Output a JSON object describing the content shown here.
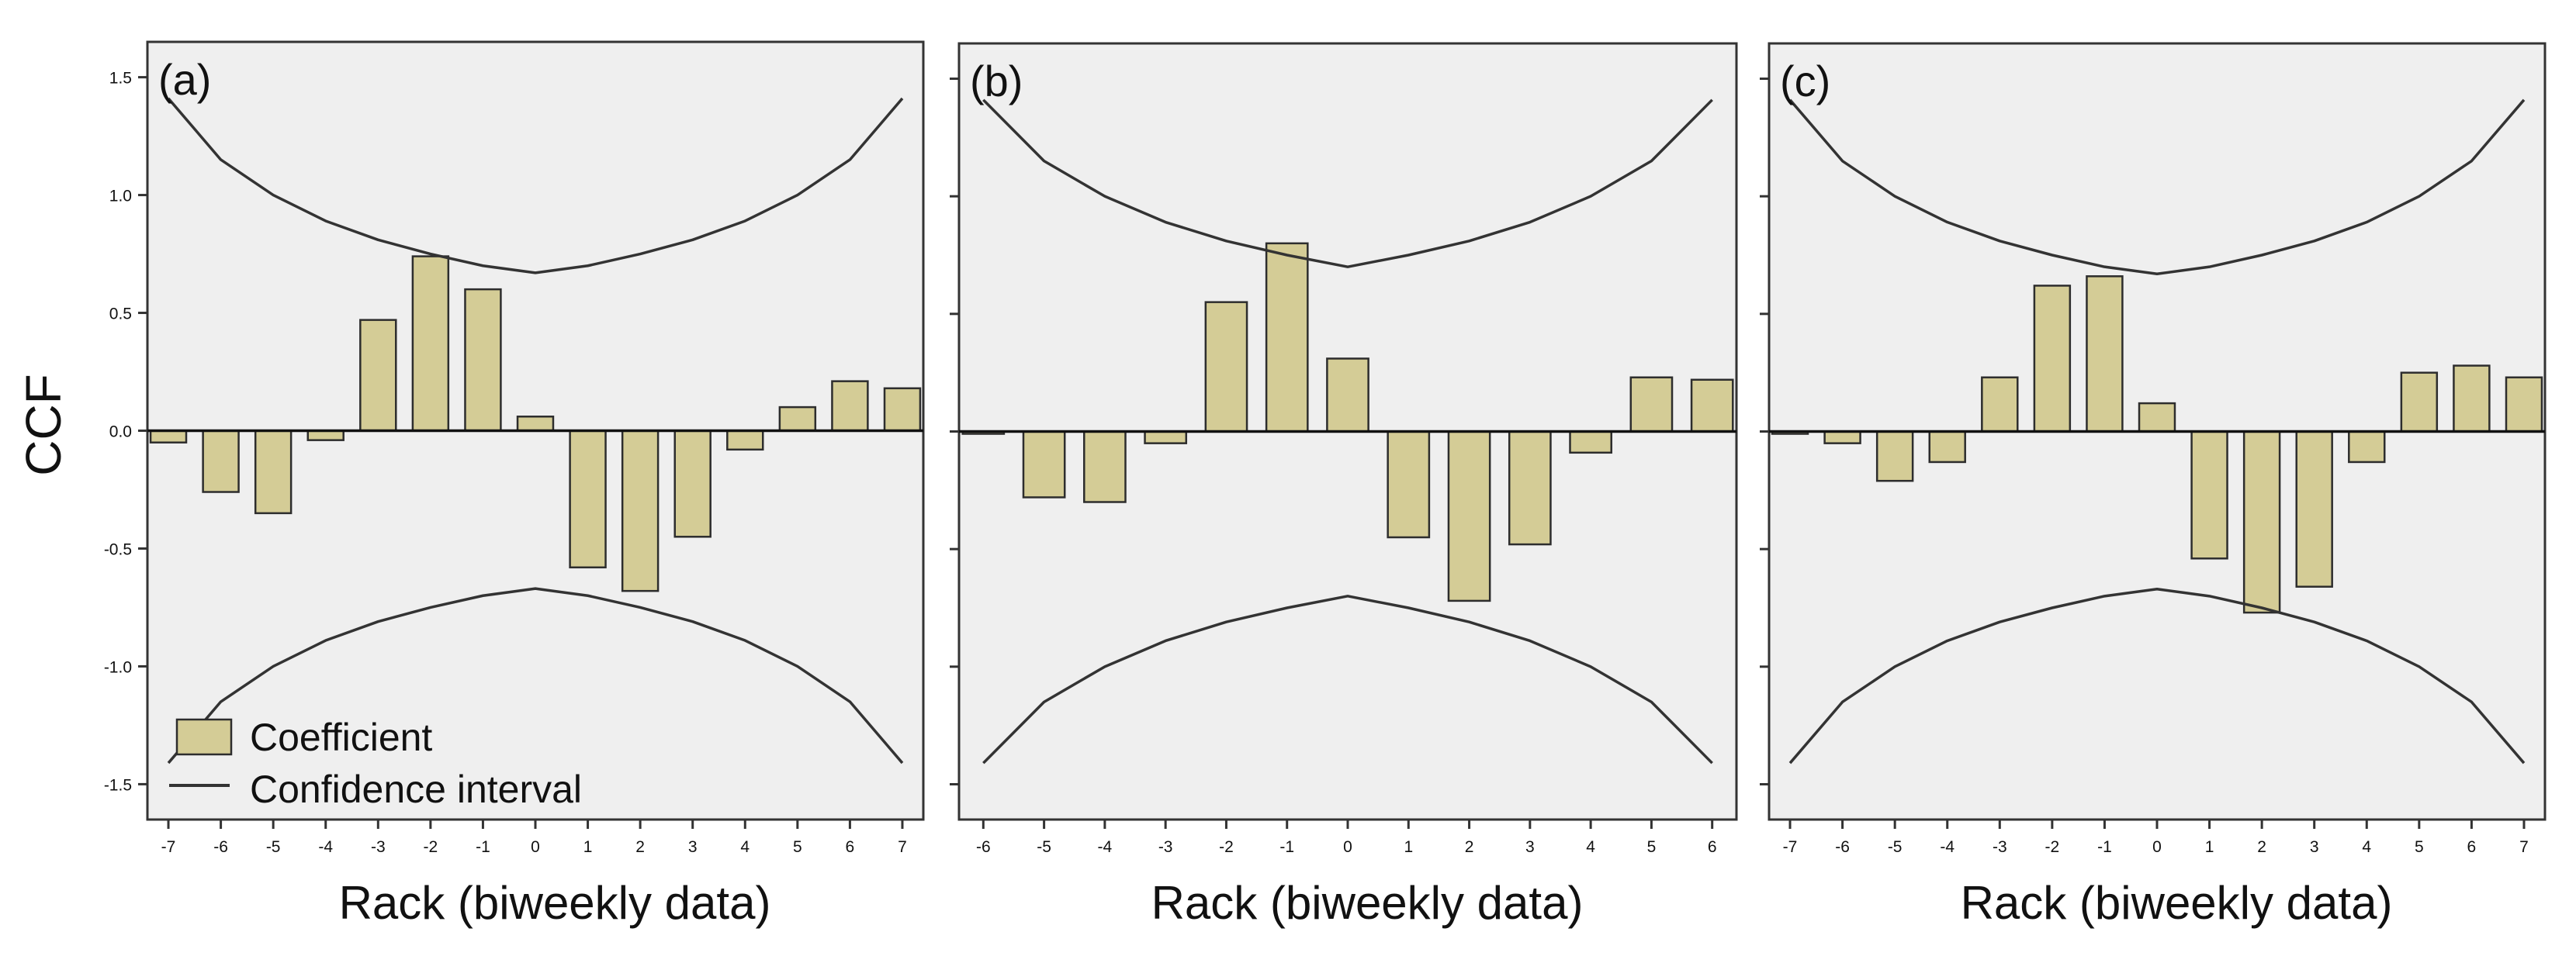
{
  "figure": {
    "ylabel": "CCF",
    "legend": {
      "bar_label": "Coefficient",
      "line_label": "Confidence interval",
      "placement": "bottom-left of panel (a)"
    }
  },
  "chart_data": [
    {
      "type": "bar",
      "panel_label": "(a)",
      "title": "",
      "xlabel": "Rack (biweekly data)",
      "ylabel": "CCF",
      "ylim": [
        -1.65,
        1.65
      ],
      "yticks": [
        -1.5,
        -1.0,
        -0.5,
        0.0,
        0.5,
        1.0,
        1.5
      ],
      "ytick_labels": [
        "-1.5",
        "-1.0",
        "-0.5",
        "0.0",
        "0.5",
        "1.0",
        "1.5"
      ],
      "categories": [
        "-7",
        "-6",
        "-5",
        "-4",
        "-3",
        "-2",
        "-1",
        "0",
        "1",
        "2",
        "3",
        "4",
        "5",
        "6",
        "7"
      ],
      "lags": [
        -7,
        -6,
        -5,
        -4,
        -3,
        -2,
        -1,
        0,
        1,
        2,
        3,
        4,
        5,
        6,
        7
      ],
      "values": [
        -0.05,
        -0.26,
        -0.35,
        -0.04,
        0.47,
        0.74,
        0.6,
        0.06,
        -0.58,
        -0.68,
        -0.45,
        -0.08,
        0.1,
        0.21,
        0.18
      ],
      "confidence_upper": [
        1.41,
        1.15,
        1.0,
        0.89,
        0.81,
        0.75,
        0.7,
        0.67,
        0.7,
        0.75,
        0.81,
        0.89,
        1.0,
        1.15,
        1.41
      ],
      "confidence_lower": [
        -1.41,
        -1.15,
        -1.0,
        -0.89,
        -0.81,
        -0.75,
        -0.7,
        -0.67,
        -0.7,
        -0.75,
        -0.81,
        -0.89,
        -1.0,
        -1.15,
        -1.41
      ],
      "grid": false
    },
    {
      "type": "bar",
      "panel_label": "(b)",
      "title": "",
      "xlabel": "Rack (biweekly data)",
      "ylabel": "",
      "ylim": [
        -1.65,
        1.65
      ],
      "yticks": [
        -1.5,
        -1.0,
        -0.5,
        0.0,
        0.5,
        1.0,
        1.5
      ],
      "ytick_labels": [],
      "categories": [
        "-6",
        "-5",
        "-4",
        "-3",
        "-2",
        "-1",
        "0",
        "1",
        "2",
        "3",
        "4",
        "5",
        "6"
      ],
      "lags": [
        -6,
        -5,
        -4,
        -3,
        -2,
        -1,
        0,
        1,
        2,
        3,
        4,
        5,
        6
      ],
      "values": [
        -0.01,
        -0.28,
        -0.3,
        -0.05,
        0.55,
        0.8,
        0.31,
        -0.45,
        -0.72,
        -0.48,
        -0.09,
        0.23,
        0.22
      ],
      "confidence_upper": [
        1.41,
        1.15,
        1.0,
        0.89,
        0.81,
        0.75,
        0.7,
        0.75,
        0.81,
        0.89,
        1.0,
        1.15,
        1.41
      ],
      "confidence_lower": [
        -1.41,
        -1.15,
        -1.0,
        -0.89,
        -0.81,
        -0.75,
        -0.7,
        -0.75,
        -0.81,
        -0.89,
        -1.0,
        -1.15,
        -1.41
      ],
      "grid": false
    },
    {
      "type": "bar",
      "panel_label": "(c)",
      "title": "",
      "xlabel": "Rack (biweekly data)",
      "ylabel": "",
      "ylim": [
        -1.65,
        1.65
      ],
      "yticks": [
        -1.5,
        -1.0,
        -0.5,
        0.0,
        0.5,
        1.0,
        1.5
      ],
      "ytick_labels": [],
      "categories": [
        "-7",
        "-6",
        "-5",
        "-4",
        "-3",
        "-2",
        "-1",
        "0",
        "1",
        "2",
        "3",
        "4",
        "5",
        "6",
        "7"
      ],
      "lags": [
        -7,
        -6,
        -5,
        -4,
        -3,
        -2,
        -1,
        0,
        1,
        2,
        3,
        4,
        5,
        6,
        7
      ],
      "values": [
        -0.01,
        -0.05,
        -0.21,
        -0.13,
        0.23,
        0.62,
        0.66,
        0.12,
        -0.54,
        -0.77,
        -0.66,
        -0.13,
        0.25,
        0.28,
        0.23
      ],
      "confidence_upper": [
        1.41,
        1.15,
        1.0,
        0.89,
        0.81,
        0.75,
        0.7,
        0.67,
        0.7,
        0.75,
        0.81,
        0.89,
        1.0,
        1.15,
        1.41
      ],
      "confidence_lower": [
        -1.41,
        -1.15,
        -1.0,
        -0.89,
        -0.81,
        -0.75,
        -0.7,
        -0.67,
        -0.7,
        -0.75,
        -0.81,
        -0.89,
        -1.0,
        -1.15,
        -1.41
      ],
      "grid": false
    }
  ],
  "colors": {
    "plot_background": "#efefef",
    "bar_fill": "#d4cc96",
    "bar_stroke": "#2d2d2d",
    "axis": "#333333",
    "confidence_line": "#333333",
    "zero_line": "#111111"
  }
}
